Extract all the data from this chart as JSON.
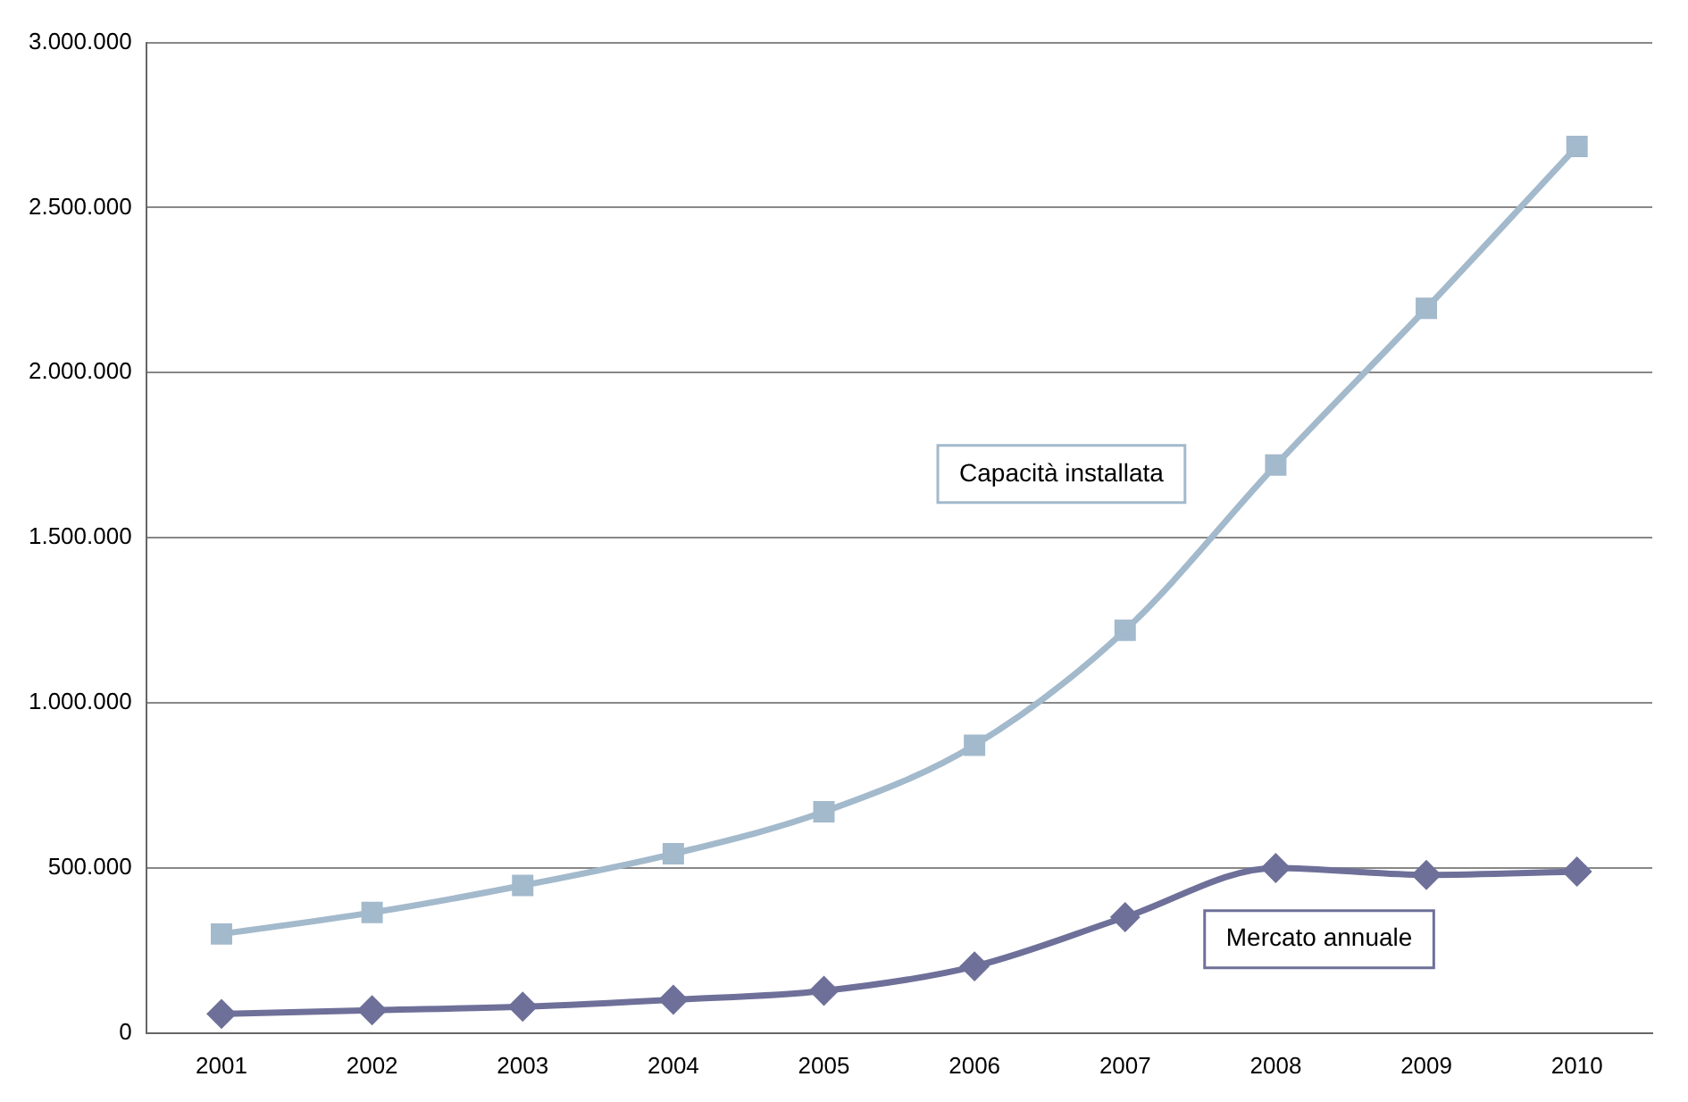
{
  "chart_data": {
    "type": "line",
    "categories": [
      "2001",
      "2002",
      "2003",
      "2004",
      "2005",
      "2006",
      "2007",
      "2008",
      "2009",
      "2010"
    ],
    "series": [
      {
        "name": "Capacità installata",
        "color": "#a3b9cc",
        "marker": "square",
        "values": [
          300000,
          365000,
          447000,
          543000,
          670000,
          872000,
          1220000,
          1720000,
          2195000,
          2685000
        ]
      },
      {
        "name": "Mercato annuale",
        "color": "#6e7099",
        "marker": "diamond",
        "values": [
          58000,
          69000,
          80000,
          101000,
          128000,
          202000,
          351000,
          500000,
          479000,
          489000
        ]
      }
    ],
    "ylim": [
      0,
      3000000
    ],
    "yticks": [
      0,
      {
        "value": 500000,
        "label": "500.000"
      },
      {
        "value": 1000000,
        "label": "1.000.000"
      },
      {
        "value": 1500000,
        "label": "1.500.000"
      },
      {
        "value": 2000000,
        "label": "2.000.000"
      },
      {
        "value": 2500000,
        "label": "2.500.000"
      },
      {
        "value": 3000000,
        "label": "3.000.000"
      }
    ],
    "grid": "y",
    "legend": false,
    "line_style": "solid"
  }
}
